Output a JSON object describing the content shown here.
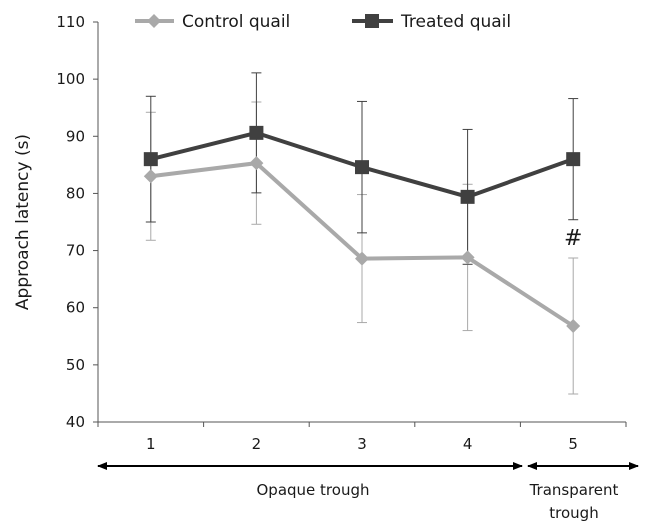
{
  "chart_data": {
    "type": "line",
    "title": "",
    "xlabel": "",
    "ylabel": "Approach latency (s)",
    "ylim": [
      40,
      110
    ],
    "y_ticks": [
      "40",
      "50",
      "60",
      "70",
      "80",
      "90",
      "100",
      "110"
    ],
    "categories": [
      "1",
      "2",
      "3",
      "4",
      "5"
    ],
    "legend_position": "top",
    "grid": false,
    "series": [
      {
        "name": "Control quail",
        "marker": "diamond",
        "color": "#a9a9a9",
        "values": [
          83,
          85.3,
          68.6,
          68.8,
          56.8
        ],
        "error": [
          11.2,
          10.7,
          11.2,
          12.8,
          11.9
        ]
      },
      {
        "name": "Treated quail",
        "marker": "square",
        "color": "#404040",
        "values": [
          86,
          90.6,
          84.6,
          79.4,
          86.0
        ],
        "error": [
          11,
          10.5,
          11.5,
          11.8,
          10.6
        ]
      }
    ],
    "annotations": [
      {
        "text": "#",
        "category": "5",
        "y": 71
      }
    ],
    "groups": [
      {
        "label": "Opaque trough",
        "categories": [
          "1",
          "2",
          "3",
          "4"
        ]
      },
      {
        "label": "Transparent trough",
        "label_lines": [
          "Transparent",
          "trough"
        ],
        "categories": [
          "5"
        ]
      }
    ]
  }
}
